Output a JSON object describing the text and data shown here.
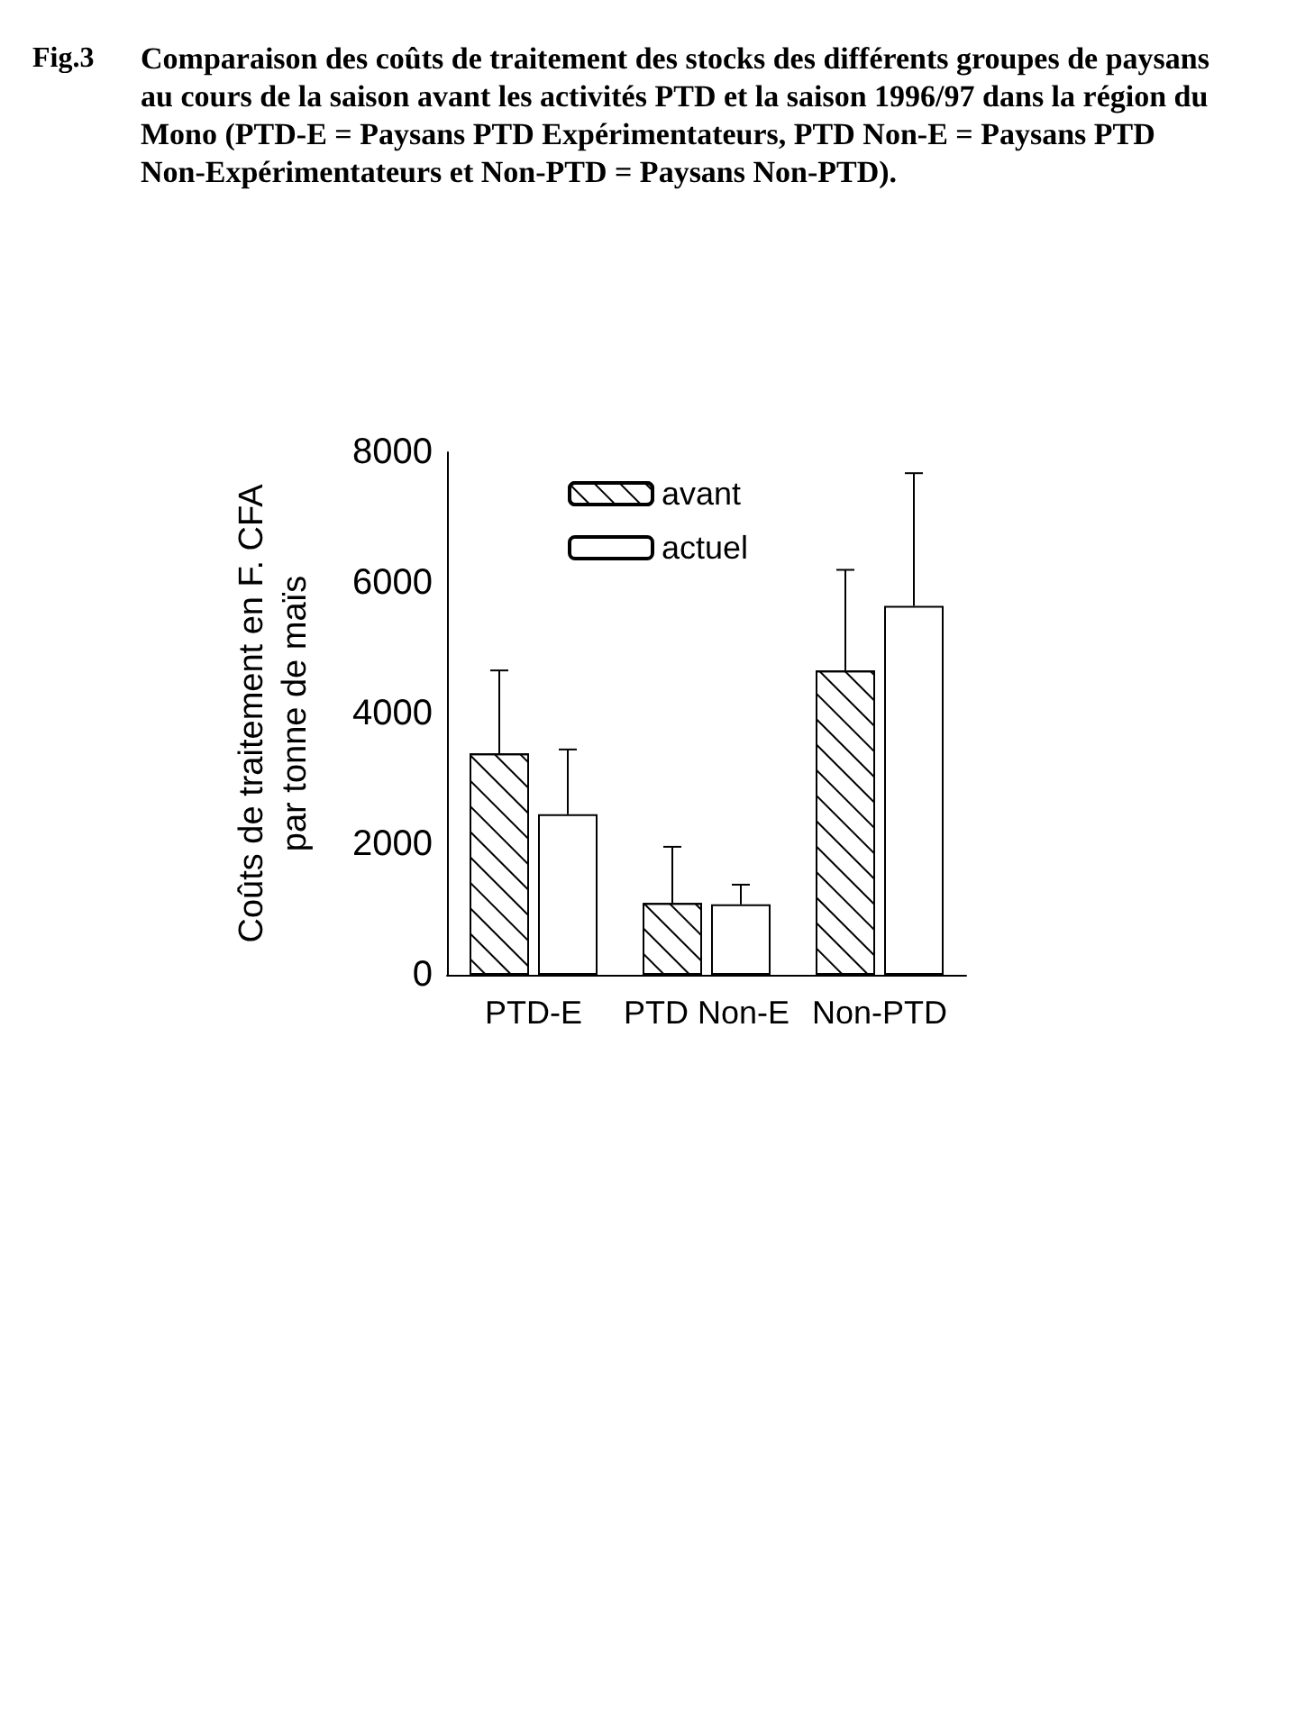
{
  "chart_data": {
    "type": "bar",
    "title": "Fig.3",
    "subtitle": "Comparaison des coûts de traitement des stocks des différents groupes de paysans au cours de la saison avant les activités PTD et la saison 1996/97 dans la région du Mono (PTD-E = Paysans PTD Expérimentateurs, PTD Non-E = Paysans PTD Non-Expérimentateurs et Non-PTD = Paysans Non-PTD).",
    "ylabel": "Coûts de traitement en F. CFA\npar tonne de maïs",
    "categories": [
      "PTD-E",
      "PTD Non-E",
      "Non-PTD"
    ],
    "series": [
      {
        "name": "avant",
        "color": "#ffffff",
        "values": [
          3390,
          1100,
          4660
        ],
        "errors": [
          [
            3390,
            4660
          ],
          [
            1100,
            1960
          ],
          [
            4660,
            6200
          ]
        ]
      },
      {
        "name": "actuel",
        "color": "#ffffff",
        "values": [
          2460,
          1080,
          5650
        ],
        "errors": [
          [
            2460,
            3450
          ],
          [
            1080,
            1380
          ],
          [
            5650,
            7680
          ]
        ]
      }
    ],
    "ylim": [
      0,
      8000
    ],
    "yticks": [
      0,
      2000,
      4000,
      6000,
      8000
    ],
    "grid": false,
    "legend": "top"
  }
}
